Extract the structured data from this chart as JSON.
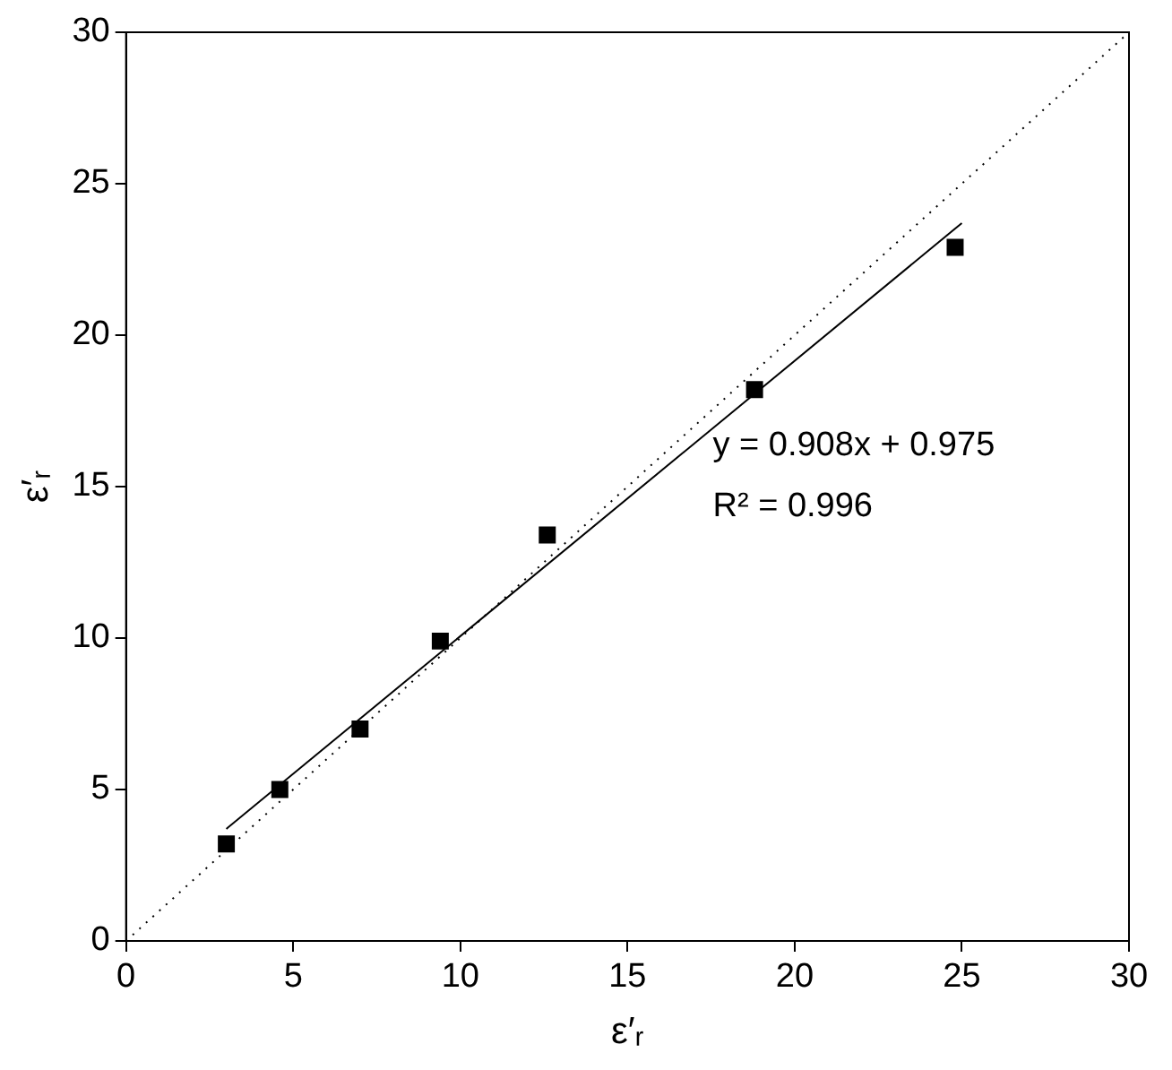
{
  "chart_data": {
    "type": "scatter",
    "xlabel": "ε′ᵣ",
    "ylabel": "ε′ᵣ",
    "xlim": [
      0,
      30
    ],
    "ylim": [
      0,
      30
    ],
    "xticks": [
      0,
      5,
      10,
      15,
      20,
      25,
      30
    ],
    "yticks": [
      0,
      5,
      10,
      15,
      20,
      25,
      30
    ],
    "grid": false,
    "legend": false,
    "series": [
      {
        "type": "scatter",
        "color": "#000000",
        "marker": "square",
        "x": [
          3,
          4.6,
          7,
          9.4,
          12.6,
          18.8,
          24.8
        ],
        "values": [
          3.2,
          5,
          7,
          9.9,
          13.4,
          18.2,
          22.9
        ]
      },
      {
        "type": "line",
        "color": "#000000",
        "marker": "none",
        "line_style": "solid",
        "x": [
          3,
          25
        ],
        "values": [
          3.7,
          23.7
        ]
      },
      {
        "type": "line",
        "color": "#000000",
        "marker": "none",
        "line_style": "dotted",
        "x": [
          0,
          30
        ],
        "values": [
          0,
          30
        ]
      }
    ],
    "annotations": [
      "y = 0.908x + 0.975",
      "R² = 0.996"
    ]
  }
}
